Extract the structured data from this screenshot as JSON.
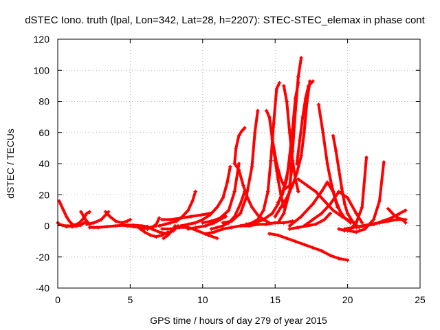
{
  "chart_data": {
    "type": "scatter",
    "title": "dSTEC Iono. truth (lpal, Lon=342, Lat=28, h=2207): STEC-STEC_elemax in phase cont",
    "xlabel": "GPS time / hours of day 279 of year 2015",
    "ylabel": "dSTEC  / TECUs",
    "xlim": [
      0,
      25
    ],
    "ylim": [
      -40,
      120
    ],
    "x_ticks": [
      0,
      5,
      10,
      15,
      20,
      25
    ],
    "y_ticks": [
      -40,
      -20,
      0,
      20,
      40,
      60,
      80,
      100,
      120
    ],
    "grid": true,
    "marker": "+",
    "color": "#ff0000",
    "series": [
      {
        "x": [
          0.0,
          0.1,
          0.3,
          0.5,
          0.7,
          1.0,
          1.3,
          1.6,
          1.8,
          2.0
        ],
        "y": [
          2,
          1,
          0.5,
          0,
          0,
          -0.5,
          0,
          0.5,
          2,
          2.5
        ]
      },
      {
        "x": [
          0.1,
          0.2,
          0.4,
          0.6,
          0.8,
          1.0,
          1.2
        ],
        "y": [
          16,
          14,
          10,
          6,
          3,
          1,
          0.5
        ]
      },
      {
        "x": [
          0.6,
          0.9,
          1.2,
          1.5,
          1.8,
          2.0,
          2.2
        ],
        "y": [
          -0.5,
          0,
          0.5,
          2,
          5,
          8,
          9
        ]
      },
      {
        "x": [
          1.6,
          1.8,
          2.0,
          2.2
        ],
        "y": [
          9,
          6,
          3,
          1
        ]
      },
      {
        "x": [
          2.0,
          2.5,
          3.0,
          3.3,
          3.5
        ],
        "y": [
          1,
          2,
          4,
          7,
          9
        ]
      },
      {
        "x": [
          3.3,
          3.6,
          4.0,
          4.4,
          4.8,
          5.0
        ],
        "y": [
          9,
          6,
          3,
          2,
          3,
          4
        ]
      },
      {
        "x": [
          2.2,
          2.8,
          3.4,
          4.0,
          4.6,
          5.2,
          5.8,
          6.2
        ],
        "y": [
          -1,
          -1,
          -0.5,
          0,
          0.5,
          0.5,
          0,
          -0.5
        ]
      },
      {
        "x": [
          4.5,
          4.8,
          5.2,
          5.6,
          6.0,
          6.4,
          6.8
        ],
        "y": [
          0.5,
          0,
          -0.5,
          -1,
          -1.5,
          -1,
          0
        ]
      },
      {
        "x": [
          5.7,
          6.0,
          6.4,
          6.8,
          7.2,
          7.6
        ],
        "y": [
          -2,
          -4,
          -6,
          -7,
          -6,
          -4
        ]
      },
      {
        "x": [
          5.9,
          6.2,
          6.5,
          6.8,
          7.0
        ],
        "y": [
          -1,
          -2,
          -1,
          1,
          5
        ]
      },
      {
        "x": [
          6.5,
          7.0,
          7.5,
          8.0,
          8.3
        ],
        "y": [
          -2,
          -4,
          -5,
          -3,
          0
        ]
      },
      {
        "x": [
          7.3,
          7.6,
          7.9,
          8.1
        ],
        "y": [
          -8,
          -6,
          -3,
          0
        ]
      },
      {
        "x": [
          7.2,
          7.8,
          8.4,
          9.0,
          9.6,
          10.4,
          11.0
        ],
        "y": [
          -2,
          -2,
          -1,
          -1,
          -3,
          -6,
          -8
        ]
      },
      {
        "x": [
          7.0,
          7.4,
          7.8,
          8.2,
          8.6,
          9.0,
          9.3,
          9.5
        ],
        "y": [
          0,
          1,
          2,
          3,
          6,
          10,
          16,
          22
        ]
      },
      {
        "x": [
          7.2,
          7.8,
          8.5,
          9.2,
          9.9,
          10.5
        ],
        "y": [
          4,
          4,
          5,
          6,
          7,
          8
        ]
      },
      {
        "x": [
          8.5,
          9.0,
          9.5,
          10.0,
          10.5,
          11.0,
          11.4,
          11.7,
          11.9
        ],
        "y": [
          0,
          1,
          2,
          4,
          7,
          12,
          18,
          28,
          38
        ]
      },
      {
        "x": [
          9.0,
          9.6,
          10.2,
          10.8,
          11.2,
          11.6
        ],
        "y": [
          -2,
          -1,
          0,
          2,
          4,
          6
        ]
      },
      {
        "x": [
          10.0,
          10.6,
          11.2,
          11.8,
          12.2,
          12.5
        ],
        "y": [
          2,
          3,
          5,
          10,
          22,
          40
        ]
      },
      {
        "x": [
          12.2,
          12.3,
          12.5,
          12.7,
          12.9
        ],
        "y": [
          40,
          50,
          58,
          61,
          63
        ]
      },
      {
        "x": [
          10.6,
          11.0,
          11.4,
          11.8,
          12.2,
          12.6,
          12.9
        ],
        "y": [
          -2,
          -1,
          0,
          2,
          6,
          14,
          22
        ]
      },
      {
        "x": [
          12.2,
          12.5,
          12.8,
          13.1,
          13.4,
          13.8,
          14.2,
          14.6
        ],
        "y": [
          40,
          36,
          26,
          18,
          12,
          7,
          4,
          2
        ]
      },
      {
        "x": [
          10.2,
          10.8,
          11.4,
          12.0,
          12.6,
          13.2,
          13.8,
          14.4,
          15.0,
          15.6,
          16.2
        ],
        "y": [
          -5,
          -4,
          -2,
          -1,
          0,
          0,
          1,
          1,
          2,
          2,
          3
        ]
      },
      {
        "x": [
          11.4,
          12.0,
          12.6,
          13.0,
          13.4,
          13.6,
          13.8
        ],
        "y": [
          2,
          3,
          8,
          18,
          38,
          60,
          74
        ]
      },
      {
        "x": [
          12.6,
          13.2,
          13.8,
          14.2,
          14.5,
          14.7,
          14.9,
          15.1,
          15.3
        ],
        "y": [
          0,
          1,
          4,
          10,
          22,
          42,
          66,
          88,
          92
        ]
      },
      {
        "x": [
          14.4,
          14.6,
          14.8,
          15.0,
          15.2,
          15.4,
          15.6
        ],
        "y": [
          74,
          70,
          56,
          42,
          30,
          20,
          12
        ]
      },
      {
        "x": [
          13.0,
          13.6,
          14.2,
          14.8,
          15.2,
          15.6,
          16.0
        ],
        "y": [
          1,
          2,
          4,
          8,
          14,
          24,
          40
        ]
      },
      {
        "x": [
          14.8,
          15.1,
          15.4,
          15.7,
          16.0,
          16.2
        ],
        "y": [
          56,
          40,
          30,
          24,
          26,
          40
        ]
      },
      {
        "x": [
          15.2,
          15.5,
          15.8,
          16.0,
          16.2,
          16.4,
          16.6
        ],
        "y": [
          15,
          20,
          30,
          45,
          62,
          82,
          92
        ]
      },
      {
        "x": [
          15.6,
          15.8,
          16.0,
          16.2,
          16.4,
          16.6
        ],
        "y": [
          90,
          80,
          60,
          42,
          30,
          22
        ]
      },
      {
        "x": [
          15.2,
          15.6,
          16.0,
          16.2,
          16.4,
          16.6,
          16.8
        ],
        "y": [
          2,
          8,
          22,
          48,
          74,
          96,
          108
        ]
      },
      {
        "x": [
          16.5,
          16.7,
          16.9,
          17.1,
          17.3,
          17.6
        ],
        "y": [
          40,
          55,
          70,
          82,
          90,
          93
        ]
      },
      {
        "x": [
          17.4,
          17.2,
          17.0,
          16.8,
          16.5,
          16.2,
          15.8,
          15.4,
          15.0
        ],
        "y": [
          93,
          80,
          60,
          45,
          34,
          26,
          18,
          12,
          6
        ]
      },
      {
        "x": [
          14.6,
          15.2,
          15.8,
          16.4,
          17.0,
          17.6,
          18.2,
          18.8,
          19.4,
          20.0
        ],
        "y": [
          -5,
          -6,
          -8,
          -10,
          -12,
          -14,
          -16,
          -19,
          -21,
          -22
        ]
      },
      {
        "x": [
          16.0,
          16.6,
          17.2,
          17.8,
          18.4,
          18.8
        ],
        "y": [
          -2,
          -1,
          0,
          1,
          4,
          8
        ]
      },
      {
        "x": [
          16.6,
          17.2,
          17.8,
          18.4,
          19.0,
          19.6,
          20.2,
          20.6
        ],
        "y": [
          30,
          26,
          22,
          16,
          10,
          6,
          3,
          2
        ]
      },
      {
        "x": [
          18.0,
          18.3,
          18.6,
          18.9,
          19.2,
          19.5,
          19.8,
          20.2
        ],
        "y": [
          78,
          60,
          40,
          26,
          16,
          9,
          5,
          2
        ]
      },
      {
        "x": [
          19.0,
          19.2,
          19.4,
          19.6,
          19.8,
          20.0,
          20.4,
          20.8
        ],
        "y": [
          58,
          48,
          36,
          24,
          14,
          8,
          2,
          -1
        ]
      },
      {
        "x": [
          16.0,
          16.8,
          17.6,
          18.2,
          18.6,
          19.0,
          19.3
        ],
        "y": [
          0,
          6,
          14,
          22,
          28,
          22,
          12
        ]
      },
      {
        "x": [
          17.0,
          17.6,
          18.2,
          18.8,
          19.4,
          20.0,
          20.6,
          21.0
        ],
        "y": [
          0,
          4,
          8,
          14,
          22,
          18,
          8,
          2
        ]
      },
      {
        "x": [
          19.4,
          19.8,
          20.2,
          20.6,
          21.0,
          21.3
        ],
        "y": [
          -2,
          -3,
          -2,
          2,
          12,
          44
        ]
      },
      {
        "x": [
          20.0,
          20.6,
          21.2,
          21.8,
          22.2,
          22.5
        ],
        "y": [
          -3,
          -4,
          -2,
          4,
          16,
          41
        ]
      },
      {
        "x": [
          19.8,
          20.4,
          21.0,
          21.6,
          22.2,
          22.8,
          23.4,
          24.0
        ],
        "y": [
          -2,
          -1,
          0,
          1,
          2,
          3,
          4,
          4
        ]
      },
      {
        "x": [
          20.6,
          21.2,
          21.8,
          22.4,
          23.0,
          23.6,
          24.0
        ],
        "y": [
          -1,
          0,
          1,
          3,
          5,
          8,
          10
        ]
      },
      {
        "x": [
          22.8,
          23.0,
          23.2,
          23.5,
          23.8,
          24.0
        ],
        "y": [
          11,
          9,
          7,
          5,
          4,
          2
        ]
      }
    ]
  }
}
